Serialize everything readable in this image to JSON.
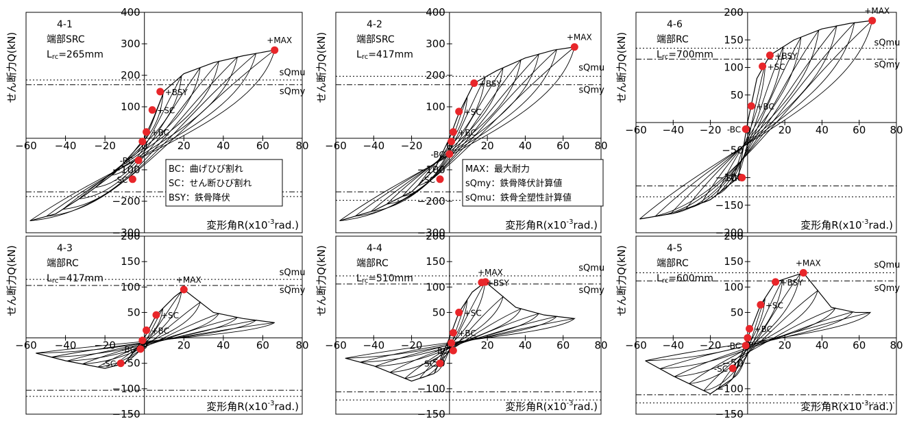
{
  "chart_data": [
    {
      "type": "line",
      "specimen": "4-1",
      "end_type": "端部SRC",
      "lrc_label": "Lrc=265mm",
      "ylabel": "せん断力Q(kN)",
      "xlabel": "変形角R(x10-3rad.)",
      "xlim": [
        -60,
        80
      ],
      "ylim": [
        -300,
        400
      ],
      "x_ticks": [
        -60,
        -40,
        -20,
        0,
        20,
        40,
        60,
        80
      ],
      "y_ticks": [
        -300,
        -200,
        -100,
        0,
        100,
        200,
        300,
        400
      ],
      "reference_lines": [
        {
          "name": "sQmu",
          "value": 185,
          "style": "dotted"
        },
        {
          "name": "sQmy",
          "value": 170,
          "style": "dashdot"
        },
        {
          "name": "sQmu",
          "value": -185,
          "style": "dotted"
        },
        {
          "name": "sQmy",
          "value": -170,
          "style": "dashdot"
        }
      ],
      "reference_labels": [
        {
          "text": "sQmu",
          "x": 75,
          "y": 200
        },
        {
          "text": "sQmy",
          "x": 75,
          "y": 140
        }
      ],
      "points": [
        {
          "label": "+MAX",
          "x": 66,
          "y": 280
        },
        {
          "label": "+BSY",
          "x": 8,
          "y": 148
        },
        {
          "label": "+SC",
          "x": 4,
          "y": 90
        },
        {
          "label": "+BC",
          "x": 1,
          "y": 20
        },
        {
          "label": "",
          "x": -1,
          "y": -10
        },
        {
          "label": "-BC",
          "x": -3,
          "y": -70
        },
        {
          "label": "-SC",
          "x": -6,
          "y": -130
        }
      ],
      "legend_lines": [
        "BC：曲げひび割れ",
        "SC：せん断ひび割れ",
        "BSY：鉄骨降伏"
      ],
      "envelope": [
        [
          -58,
          -262
        ],
        [
          -45,
          -240
        ],
        [
          -30,
          -180
        ],
        [
          -15,
          -110
        ],
        [
          -5,
          -40
        ],
        [
          0,
          0
        ],
        [
          5,
          70
        ],
        [
          10,
          150
        ],
        [
          20,
          205
        ],
        [
          35,
          240
        ],
        [
          50,
          262
        ],
        [
          66,
          280
        ]
      ]
    },
    {
      "type": "line",
      "specimen": "4-2",
      "end_type": "端部SRC",
      "lrc_label": "Lrc=417mm",
      "ylabel": "せん断力Q(kN)",
      "xlabel": "変形角R(x10-3rad.)",
      "xlim": [
        -60,
        80
      ],
      "ylim": [
        -300,
        400
      ],
      "x_ticks": [
        -60,
        -40,
        -20,
        0,
        20,
        40,
        60,
        80
      ],
      "y_ticks": [
        -300,
        -200,
        -100,
        0,
        100,
        200,
        300,
        400
      ],
      "reference_lines": [
        {
          "name": "sQmu",
          "value": 197,
          "style": "dotted"
        },
        {
          "name": "sQmy",
          "value": 170,
          "style": "dashdot"
        },
        {
          "name": "sQmu",
          "value": -197,
          "style": "dotted"
        },
        {
          "name": "sQmy",
          "value": -170,
          "style": "dashdot"
        }
      ],
      "reference_labels": [
        {
          "text": "sQmu",
          "x": 75,
          "y": 215
        },
        {
          "text": "sQmy",
          "x": 75,
          "y": 145
        }
      ],
      "points": [
        {
          "label": "+MAX",
          "x": 66,
          "y": 290
        },
        {
          "label": "+BSY",
          "x": 13,
          "y": 175
        },
        {
          "label": "+SC",
          "x": 5,
          "y": 85
        },
        {
          "label": "+BC",
          "x": 2,
          "y": 20
        },
        {
          "label": "",
          "x": 1,
          "y": -10
        },
        {
          "label": "-BC",
          "x": 0,
          "y": -50
        },
        {
          "label": "-SC",
          "x": -5,
          "y": -130
        }
      ],
      "legend_lines": [
        "MAX：最大耐力",
        "sQmy：鉄骨降伏計算値",
        "sQmu：鉄骨全塑性計算値"
      ],
      "envelope": [
        [
          -58,
          -262
        ],
        [
          -40,
          -230
        ],
        [
          -20,
          -170
        ],
        [
          -8,
          -100
        ],
        [
          0,
          0
        ],
        [
          5,
          80
        ],
        [
          13,
          175
        ],
        [
          25,
          215
        ],
        [
          40,
          255
        ],
        [
          55,
          280
        ],
        [
          66,
          290
        ]
      ]
    },
    {
      "type": "line",
      "specimen": "4-6",
      "end_type": "端部RC",
      "lrc_label": "Lrc=700mm",
      "ylabel": "せん断力Q(kN)",
      "xlabel": "変形角R(x10-3rad.)",
      "xlim": [
        -60,
        80
      ],
      "ylim": [
        -200,
        200
      ],
      "x_ticks": [
        -60,
        -40,
        -20,
        0,
        20,
        40,
        60,
        80
      ],
      "y_ticks": [
        -200,
        -150,
        -100,
        -50,
        0,
        50,
        100,
        150,
        200
      ],
      "reference_lines": [
        {
          "name": "sQmu",
          "value": 135,
          "style": "dotted"
        },
        {
          "name": "sQmy",
          "value": 115,
          "style": "dashdot"
        },
        {
          "name": "sQmu",
          "value": -135,
          "style": "dotted"
        },
        {
          "name": "sQmy",
          "value": -115,
          "style": "dashdot"
        }
      ],
      "reference_labels": [
        {
          "text": "sQmu",
          "x": 75,
          "y": 140
        },
        {
          "text": "sQmy",
          "x": 75,
          "y": 100
        }
      ],
      "points": [
        {
          "label": "+MAX",
          "x": 67,
          "y": 185
        },
        {
          "label": "+BSY",
          "x": 12,
          "y": 122
        },
        {
          "label": "+SC",
          "x": 8,
          "y": 102
        },
        {
          "label": "+BC",
          "x": 2,
          "y": 30
        },
        {
          "label": "-BC",
          "x": -1,
          "y": -12
        },
        {
          "label": "-SC",
          "x": -3,
          "y": -100
        }
      ],
      "legend_lines": [],
      "envelope": [
        [
          -58,
          -175
        ],
        [
          -40,
          -165
        ],
        [
          -20,
          -140
        ],
        [
          -5,
          -100
        ],
        [
          0,
          0
        ],
        [
          5,
          80
        ],
        [
          12,
          122
        ],
        [
          25,
          150
        ],
        [
          40,
          170
        ],
        [
          55,
          180
        ],
        [
          67,
          185
        ]
      ]
    },
    {
      "type": "line",
      "specimen": "4-3",
      "end_type": "端部RC",
      "lrc_label": "Lrc=417mm",
      "ylabel": "せん断力Q(kN)",
      "xlabel": "変形角R(x10-3rad.)",
      "xlim": [
        -60,
        80
      ],
      "ylim": [
        -150,
        200
      ],
      "x_ticks": [
        -60,
        -40,
        -20,
        0,
        20,
        40,
        60,
        80
      ],
      "y_ticks": [
        -150,
        -100,
        -50,
        0,
        50,
        100,
        150,
        200
      ],
      "reference_lines": [
        {
          "name": "sQmu",
          "value": 115,
          "style": "dotted"
        },
        {
          "name": "sQmy",
          "value": 103,
          "style": "dashdot"
        },
        {
          "name": "sQmu",
          "value": -115,
          "style": "dotted"
        },
        {
          "name": "sQmy",
          "value": -103,
          "style": "dashdot"
        }
      ],
      "reference_labels": [
        {
          "text": "sQmu",
          "x": 75,
          "y": 123
        },
        {
          "text": "sQmy",
          "x": 75,
          "y": 88
        }
      ],
      "points": [
        {
          "label": "+MAX",
          "x": 20,
          "y": 95
        },
        {
          "label": "+SC",
          "x": 6,
          "y": 45
        },
        {
          "label": "+BC",
          "x": 1,
          "y": 15
        },
        {
          "label": "",
          "x": -1,
          "y": -5
        },
        {
          "label": "-BC",
          "x": -2,
          "y": -22
        },
        {
          "label": "-SC",
          "x": -12,
          "y": -50
        }
      ],
      "legend_lines": [],
      "envelope": [
        [
          -55,
          -30
        ],
        [
          -40,
          -45
        ],
        [
          -20,
          -60
        ],
        [
          -10,
          -50
        ],
        [
          0,
          0
        ],
        [
          6,
          45
        ],
        [
          15,
          80
        ],
        [
          20,
          95
        ],
        [
          35,
          50
        ],
        [
          50,
          38
        ],
        [
          66,
          30
        ]
      ]
    },
    {
      "type": "line",
      "specimen": "4-4",
      "end_type": "端部RC",
      "lrc_label": "Lrc=510mm",
      "ylabel": "せん断力Q(kN)",
      "xlabel": "変形角R(x10-3rad.)",
      "xlim": [
        -60,
        80
      ],
      "ylim": [
        -150,
        200
      ],
      "x_ticks": [
        -60,
        -40,
        -20,
        0,
        20,
        40,
        60,
        80
      ],
      "y_ticks": [
        -150,
        -100,
        -50,
        0,
        50,
        100,
        150,
        200
      ],
      "reference_lines": [
        {
          "name": "sQmu",
          "value": 122,
          "style": "dotted"
        },
        {
          "name": "sQmy",
          "value": 106,
          "style": "dashdot"
        },
        {
          "name": "sQmu",
          "value": -122,
          "style": "dotted"
        },
        {
          "name": "sQmy",
          "value": -106,
          "style": "dashdot"
        }
      ],
      "reference_labels": [
        {
          "text": "sQmu",
          "x": 75,
          "y": 132
        },
        {
          "text": "sQmy",
          "x": 75,
          "y": 88
        }
      ],
      "points": [
        {
          "label": "+MAX",
          "x": 19,
          "y": 110
        },
        {
          "label": "+BSY",
          "x": 17,
          "y": 109
        },
        {
          "label": "+SC",
          "x": 5,
          "y": 50
        },
        {
          "label": "+BC",
          "x": 2,
          "y": 10
        },
        {
          "label": "",
          "x": 1,
          "y": -10
        },
        {
          "label": "-BC",
          "x": 2,
          "y": -25
        },
        {
          "label": "-SC",
          "x": -5,
          "y": -50
        }
      ],
      "legend_lines": [],
      "envelope": [
        [
          -55,
          -40
        ],
        [
          -40,
          -55
        ],
        [
          -20,
          -85
        ],
        [
          -8,
          -70
        ],
        [
          0,
          0
        ],
        [
          5,
          50
        ],
        [
          12,
          90
        ],
        [
          19,
          110
        ],
        [
          35,
          60
        ],
        [
          50,
          45
        ],
        [
          66,
          38
        ]
      ]
    },
    {
      "type": "line",
      "specimen": "4-5",
      "end_type": "端部RC",
      "lrc_label": "Lrc=600mm",
      "ylabel": "せん断力Q(kN)",
      "xlabel": "変形角R(x10-3rad.)",
      "xlim": [
        -60,
        80
      ],
      "ylim": [
        -150,
        200
      ],
      "x_ticks": [
        -60,
        -40,
        -20,
        0,
        20,
        40,
        60,
        80
      ],
      "y_ticks": [
        -150,
        -100,
        -50,
        0,
        50,
        100,
        150,
        200
      ],
      "reference_lines": [
        {
          "name": "sQmu",
          "value": 128,
          "style": "dotted"
        },
        {
          "name": "sQmy",
          "value": 112,
          "style": "dashdot"
        },
        {
          "name": "sQmu",
          "value": -128,
          "style": "dotted"
        },
        {
          "name": "sQmy",
          "value": -112,
          "style": "dashdot"
        }
      ],
      "reference_labels": [
        {
          "text": "sQmu",
          "x": 75,
          "y": 138
        },
        {
          "text": "sQmy",
          "x": 75,
          "y": 92
        }
      ],
      "points": [
        {
          "label": "+MAX",
          "x": 30,
          "y": 128
        },
        {
          "label": "+BSY",
          "x": 15,
          "y": 110
        },
        {
          "label": "+SC",
          "x": 7,
          "y": 65
        },
        {
          "label": "+BC",
          "x": 1,
          "y": 18
        },
        {
          "label": "",
          "x": 0,
          "y": 0
        },
        {
          "label": "-BC",
          "x": -1,
          "y": -15
        },
        {
          "label": "-SC",
          "x": -8,
          "y": -60
        }
      ],
      "legend_lines": [],
      "envelope": [
        [
          -55,
          -45
        ],
        [
          -40,
          -75
        ],
        [
          -20,
          -110
        ],
        [
          -8,
          -80
        ],
        [
          0,
          0
        ],
        [
          7,
          65
        ],
        [
          15,
          110
        ],
        [
          30,
          128
        ],
        [
          45,
          60
        ],
        [
          58,
          50
        ],
        [
          66,
          50
        ]
      ]
    }
  ]
}
